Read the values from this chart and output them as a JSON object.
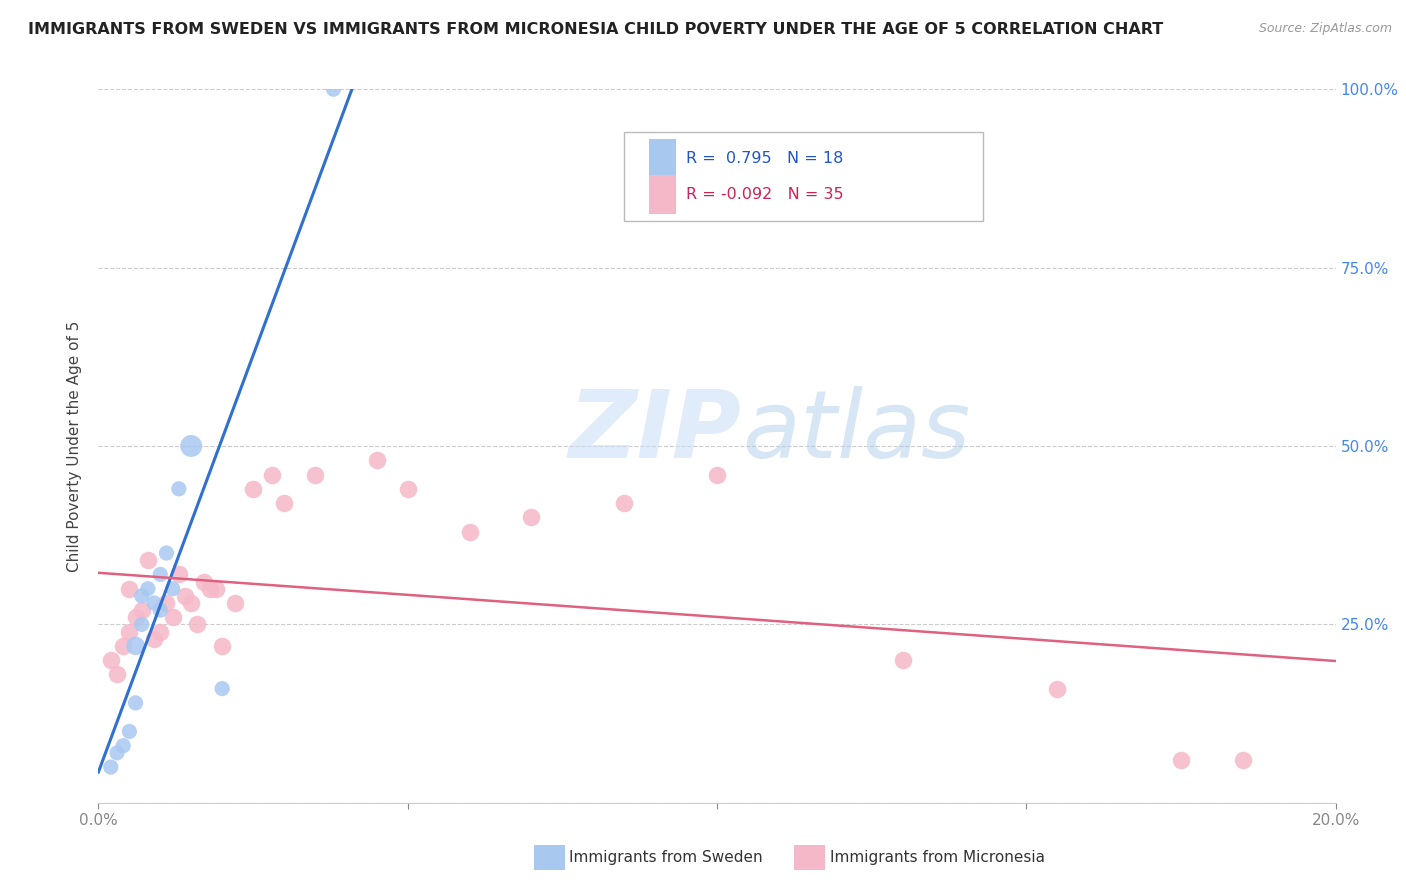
{
  "title": "IMMIGRANTS FROM SWEDEN VS IMMIGRANTS FROM MICRONESIA CHILD POVERTY UNDER THE AGE OF 5 CORRELATION CHART",
  "source": "Source: ZipAtlas.com",
  "ylabel": "Child Poverty Under the Age of 5",
  "xlim": [
    0.0,
    0.2
  ],
  "ylim": [
    0.0,
    1.0
  ],
  "x_ticks": [
    0.0,
    0.05,
    0.1,
    0.15,
    0.2
  ],
  "x_tick_labels": [
    "0.0%",
    "",
    "",
    "",
    "20.0%"
  ],
  "y_ticks_right": [
    0.0,
    0.25,
    0.5,
    0.75,
    1.0
  ],
  "y_tick_labels_right": [
    "",
    "25.0%",
    "50.0%",
    "75.0%",
    "100.0%"
  ],
  "legend_blue_r": "0.795",
  "legend_blue_n": "18",
  "legend_pink_r": "-0.092",
  "legend_pink_n": "35",
  "legend_blue_label": "Immigrants from Sweden",
  "legend_pink_label": "Immigrants from Micronesia",
  "blue_color": "#a8c8f0",
  "pink_color": "#f5b8c8",
  "blue_line_color": "#3070d0",
  "pink_line_color": "#e06080",
  "watermark_zip": "ZIP",
  "watermark_atlas": "atlas",
  "sweden_x": [
    0.002,
    0.003,
    0.004,
    0.005,
    0.006,
    0.006,
    0.007,
    0.007,
    0.008,
    0.009,
    0.01,
    0.01,
    0.011,
    0.012,
    0.013,
    0.015,
    0.02,
    0.038
  ],
  "sweden_y": [
    0.05,
    0.07,
    0.08,
    0.1,
    0.14,
    0.22,
    0.25,
    0.29,
    0.3,
    0.28,
    0.27,
    0.32,
    0.35,
    0.3,
    0.44,
    0.5,
    0.16,
    1.0
  ],
  "sweden_size": [
    120,
    120,
    120,
    120,
    120,
    180,
    120,
    120,
    120,
    120,
    120,
    120,
    120,
    120,
    120,
    250,
    120,
    120
  ],
  "micronesia_x": [
    0.002,
    0.003,
    0.004,
    0.005,
    0.005,
    0.006,
    0.007,
    0.008,
    0.009,
    0.01,
    0.011,
    0.012,
    0.013,
    0.014,
    0.015,
    0.016,
    0.017,
    0.018,
    0.019,
    0.02,
    0.022,
    0.025,
    0.028,
    0.03,
    0.035,
    0.045,
    0.05,
    0.06,
    0.07,
    0.085,
    0.1,
    0.13,
    0.155,
    0.175,
    0.185
  ],
  "micronesia_y": [
    0.2,
    0.18,
    0.22,
    0.24,
    0.3,
    0.26,
    0.27,
    0.34,
    0.23,
    0.24,
    0.28,
    0.26,
    0.32,
    0.29,
    0.28,
    0.25,
    0.31,
    0.3,
    0.3,
    0.22,
    0.28,
    0.44,
    0.46,
    0.42,
    0.46,
    0.48,
    0.44,
    0.38,
    0.4,
    0.42,
    0.46,
    0.2,
    0.16,
    0.06,
    0.06
  ]
}
